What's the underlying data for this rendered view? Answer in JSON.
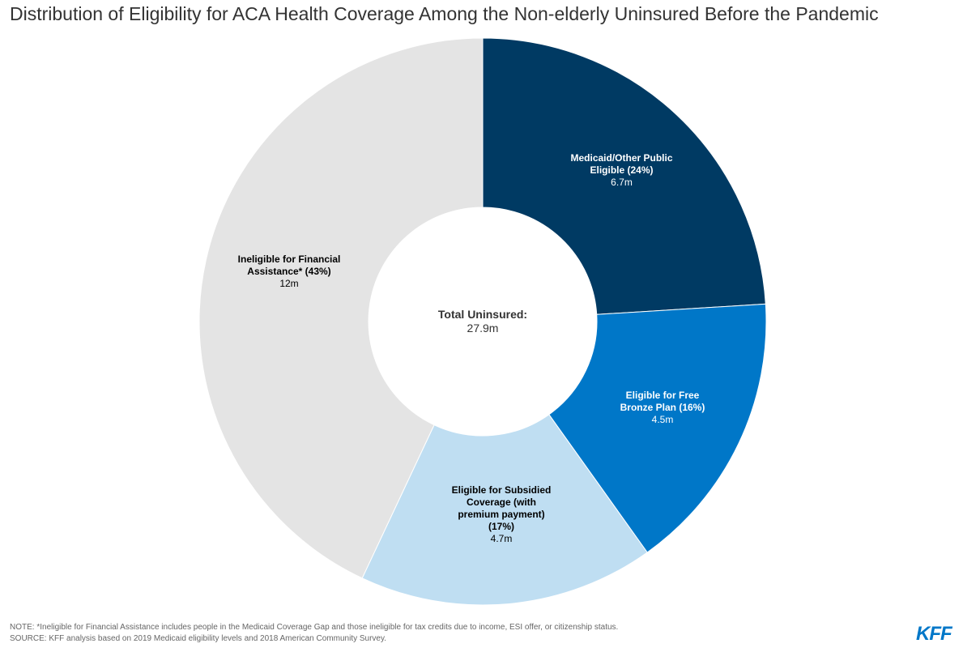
{
  "title": "Distribution of Eligibility for ACA Health Coverage Among the Non-elderly Uninsured Before the Pandemic",
  "chart_data": {
    "type": "pie",
    "donut": true,
    "center_label": "Total Uninsured:",
    "center_value": "27.9m",
    "start_angle_deg": 0,
    "direction": "clockwise",
    "slices": [
      {
        "label": "Medicaid/Other Public Eligible (24%)",
        "value": 6.7,
        "value_label": "6.7m",
        "percent": 24,
        "color": "#003a63",
        "text_color": "#ffffff"
      },
      {
        "label": "Eligible for Free Bronze Plan (16%)",
        "value": 4.5,
        "value_label": "4.5m",
        "percent": 16,
        "color": "#0077c8",
        "text_color": "#ffffff"
      },
      {
        "label": "Eligible for Subsidied Coverage (with premium payment) (17%)",
        "value": 4.7,
        "value_label": "4.7m",
        "percent": 17,
        "color": "#bfdef2",
        "text_color": "#000000"
      },
      {
        "label": "Ineligible for Financial Assistance* (43%)",
        "value": 12,
        "value_label": "12m",
        "percent": 43,
        "color": "#e4e4e4",
        "text_color": "#000000"
      }
    ]
  },
  "footer": {
    "note": "NOTE: *Ineligible for Financial Assistance includes people in the Medicaid Coverage Gap and those ineligible for tax credits due to income, ESI offer, or citizenship status.",
    "source": "SOURCE: KFF analysis based on 2019 Medicaid eligibility levels and 2018 American Community Survey."
  },
  "logo": "KFF"
}
